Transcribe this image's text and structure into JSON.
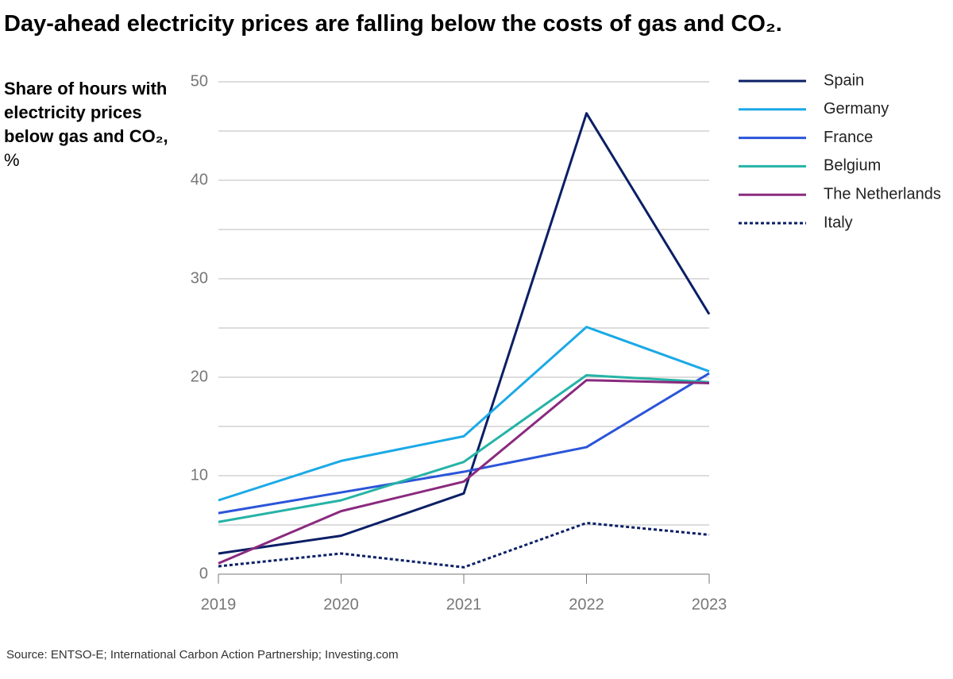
{
  "chart_data": {
    "type": "line",
    "title": "Day-ahead electricity prices are falling below the costs of gas and CO₂.",
    "y_label": {
      "main": "Share of hours with electricity prices below gas and CO₂,",
      "unit": "%"
    },
    "source": "Source: ENTSO-E; International Carbon Action Partnership; Investing.com",
    "x": [
      2019,
      2020,
      2021,
      2022,
      2023
    ],
    "xlim": [
      2019,
      2023
    ],
    "xticks": [
      2019,
      2020,
      2021,
      2022,
      2023
    ],
    "ylim": [
      0,
      50
    ],
    "yticks": [
      0,
      10,
      20,
      30,
      40,
      50
    ],
    "ygrid_minor": [
      5,
      15,
      25,
      35,
      45
    ],
    "grid": true,
    "legend": "right",
    "series": [
      {
        "name": "Spain",
        "color": "#0b1f65",
        "values": [
          2.1,
          3.9,
          8.2,
          46.8,
          26.4
        ]
      },
      {
        "name": "Germany",
        "color": "#1ba9e6",
        "values": [
          7.5,
          11.5,
          14.0,
          25.1,
          20.6
        ]
      },
      {
        "name": "France",
        "color": "#2b55d9",
        "values": [
          6.2,
          8.3,
          10.4,
          12.9,
          20.4
        ]
      },
      {
        "name": "Belgium",
        "color": "#25b3a6",
        "values": [
          5.3,
          7.5,
          11.4,
          20.2,
          19.5
        ]
      },
      {
        "name": "The Netherlands",
        "color": "#8a2a7e",
        "values": [
          1.1,
          6.4,
          9.4,
          19.7,
          19.4
        ]
      },
      {
        "name": "Italy",
        "color": "#0b1f65",
        "style": "dotted",
        "values": [
          0.8,
          2.1,
          0.7,
          5.2,
          4.0
        ]
      }
    ]
  }
}
